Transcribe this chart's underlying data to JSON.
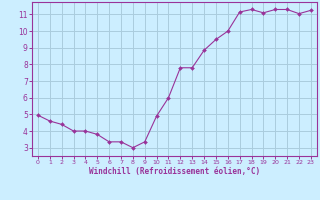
{
  "x": [
    0,
    1,
    2,
    3,
    4,
    5,
    6,
    7,
    8,
    9,
    10,
    11,
    12,
    13,
    14,
    15,
    16,
    17,
    18,
    19,
    20,
    21,
    22,
    23
  ],
  "y": [
    4.95,
    4.6,
    4.4,
    4.0,
    4.0,
    3.8,
    3.35,
    3.35,
    3.0,
    3.35,
    4.9,
    6.0,
    7.8,
    7.8,
    8.85,
    9.5,
    10.0,
    11.15,
    11.3,
    11.1,
    11.3,
    11.3,
    11.05,
    11.25
  ],
  "line_color": "#993399",
  "marker_color": "#993399",
  "bg_color": "#cceeff",
  "grid_color": "#aaccdd",
  "axis_line_color": "#993399",
  "xlabel": "Windchill (Refroidissement éolien,°C)",
  "xlabel_color": "#993399",
  "tick_color": "#993399",
  "ylim": [
    2.5,
    11.75
  ],
  "xlim": [
    -0.5,
    23.5
  ],
  "yticks": [
    3,
    4,
    5,
    6,
    7,
    8,
    9,
    10,
    11
  ],
  "xticks": [
    0,
    1,
    2,
    3,
    4,
    5,
    6,
    7,
    8,
    9,
    10,
    11,
    12,
    13,
    14,
    15,
    16,
    17,
    18,
    19,
    20,
    21,
    22,
    23
  ]
}
